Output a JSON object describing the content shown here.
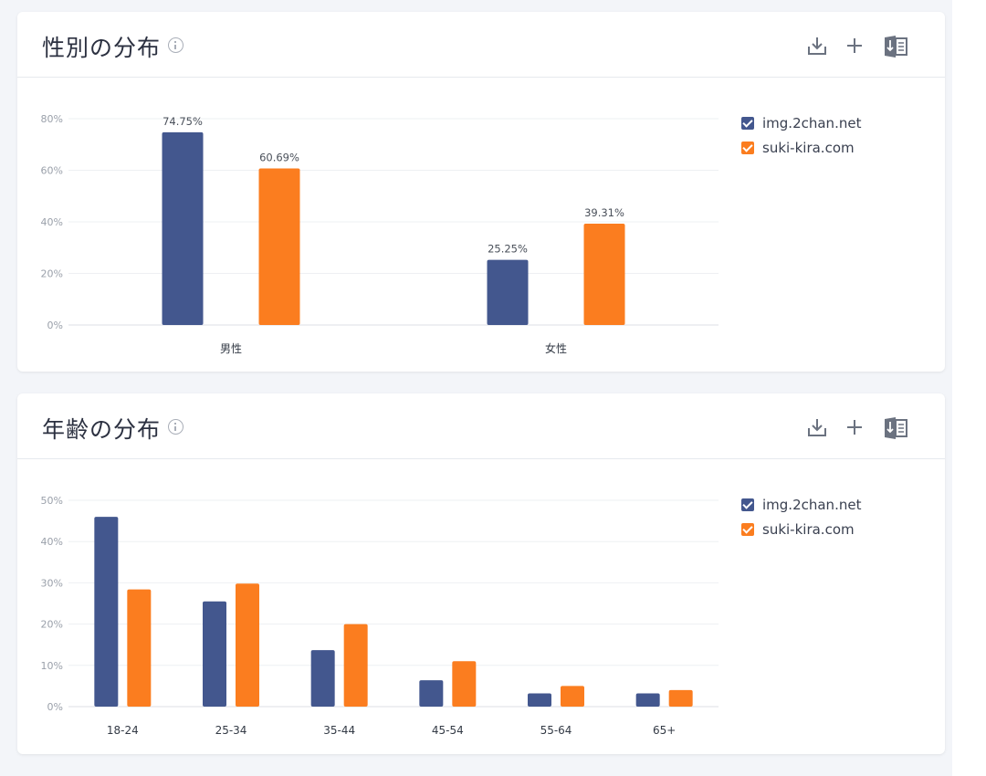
{
  "colors": {
    "series1": "#43578e",
    "series2": "#fb7d1f",
    "icon": "#6b7280"
  },
  "gender_card": {
    "title": "性別の分布",
    "icons": [
      "info-icon",
      "download-icon",
      "plus-icon",
      "excel-icon"
    ],
    "legend": [
      "img.2chan.net",
      "suki-kira.com"
    ]
  },
  "age_card": {
    "title": "年齢の分布",
    "icons": [
      "info-icon",
      "download-icon",
      "plus-icon",
      "excel-icon"
    ],
    "legend": [
      "img.2chan.net",
      "suki-kira.com"
    ]
  },
  "chart_data": [
    {
      "type": "bar",
      "title": "性別の分布",
      "categories": [
        "男性",
        "女性"
      ],
      "series": [
        {
          "name": "img.2chan.net",
          "values": [
            74.75,
            25.25
          ],
          "color": "#43578e"
        },
        {
          "name": "suki-kira.com",
          "values": [
            60.69,
            39.31
          ],
          "color": "#fb7d1f"
        }
      ],
      "data_labels": [
        [
          "74.75%",
          "25.25%"
        ],
        [
          "60.69%",
          "39.31%"
        ]
      ],
      "yticks": [
        "0%",
        "20%",
        "40%",
        "60%",
        "80%"
      ],
      "ylim": [
        0,
        80
      ],
      "grid": true,
      "legend_position": "right"
    },
    {
      "type": "bar",
      "title": "年齢の分布",
      "categories": [
        "18-24",
        "25-34",
        "35-44",
        "45-54",
        "55-64",
        "65+"
      ],
      "series": [
        {
          "name": "img.2chan.net",
          "values": [
            46,
            25.5,
            13.7,
            6.4,
            3.2,
            3.2
          ],
          "color": "#43578e"
        },
        {
          "name": "suki-kira.com",
          "values": [
            28.4,
            29.8,
            20,
            11,
            5,
            4
          ],
          "color": "#fb7d1f"
        }
      ],
      "yticks": [
        "0%",
        "10%",
        "20%",
        "30%",
        "40%",
        "50%"
      ],
      "ylim": [
        0,
        50
      ],
      "grid": true,
      "legend_position": "right"
    }
  ]
}
